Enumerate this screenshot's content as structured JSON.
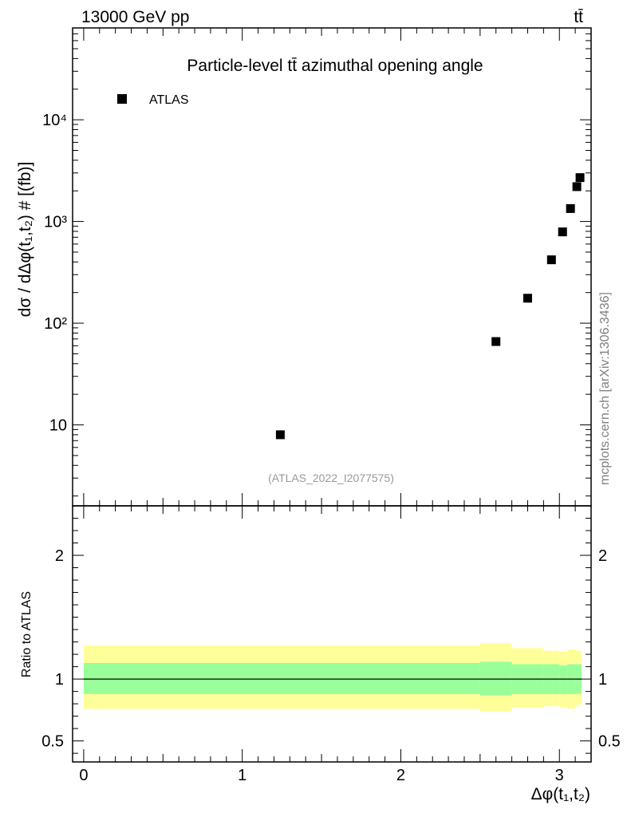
{
  "header": {
    "energy": "13000 GeV pp",
    "process": "tt̄"
  },
  "side_text": "mcplots.cern.ch [arXiv:1306.3436]",
  "analysis_id": "(ATLAS_2022_I2077575)",
  "colors": {
    "marker": "#000000",
    "band_outer": "#ffff99",
    "band_inner": "#99ff99",
    "label_grey": "#999999"
  },
  "chart_data": [
    {
      "type": "scatter",
      "title": "Particle-level tt̄ azimuthal opening angle",
      "ylabel": "dσ / dΔφ(t₁,t₂) # [(fb)]",
      "xlabel": "Δφ(t₁,t₂)",
      "yscale": "log",
      "xlim": [
        -0.07,
        3.2
      ],
      "ylim": [
        1.6,
        80000
      ],
      "ytick_labels": [
        "10",
        "10²",
        "10³",
        "10⁴"
      ],
      "legend": {
        "label": "ATLAS",
        "position": "top-left"
      },
      "series": [
        {
          "name": "ATLAS",
          "x": [
            1.24,
            2.6,
            2.8,
            2.95,
            3.02,
            3.07,
            3.11,
            3.13
          ],
          "y": [
            8.0,
            66,
            176,
            420,
            790,
            1340,
            2200,
            2700
          ]
        }
      ]
    },
    {
      "type": "area",
      "ylabel": "Ratio to ATLAS",
      "xlabel": "Δφ(t₁,t₂)",
      "xlim": [
        -0.07,
        3.2
      ],
      "ylim": [
        0.33,
        2.4
      ],
      "xtick_labels": [
        "0",
        "1",
        "2",
        "3"
      ],
      "ytick_labels": [
        "0.5",
        "1",
        "2"
      ],
      "reference_line": 1.0,
      "bands": [
        {
          "edges": [
            0.0,
            2.5,
            2.7,
            2.9,
            3.0,
            3.05,
            3.1,
            3.14
          ],
          "outer_low": [
            0.76,
            0.74,
            0.77,
            0.78,
            0.77,
            0.76,
            0.79
          ],
          "outer_high": [
            1.27,
            1.29,
            1.25,
            1.23,
            1.22,
            1.24,
            1.23
          ],
          "inner_low": [
            0.88,
            0.87,
            0.88,
            0.88,
            0.88,
            0.88,
            0.88
          ],
          "inner_high": [
            1.13,
            1.14,
            1.12,
            1.12,
            1.11,
            1.12,
            1.12
          ]
        }
      ]
    }
  ]
}
